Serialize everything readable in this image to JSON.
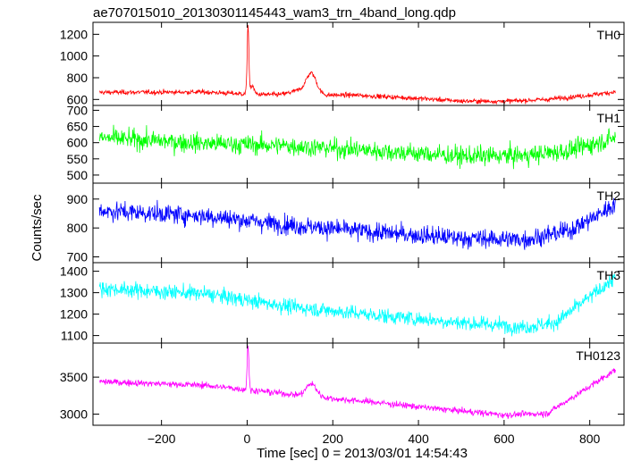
{
  "page_title": "ae707015010_20130301145443_wam3_trn_4band_long.qdp",
  "x_axis": {
    "label": "Time [sec] 0 = 2013/03/01 14:54:43",
    "range": [
      -360,
      880
    ],
    "ticks": [
      -200,
      0,
      200,
      400,
      600,
      800
    ],
    "tick_labels": [
      "−200",
      "0",
      "200",
      "400",
      "600",
      "800"
    ]
  },
  "y_axis_label": "Counts/sec",
  "chart_data": [
    {
      "type": "line",
      "name": "TH0",
      "color": "#ff0000",
      "ylim": [
        545,
        1310
      ],
      "yticks": [
        600,
        800,
        1000,
        1200
      ],
      "noise": 28,
      "baseline": [
        [
          -345,
          665
        ],
        [
          -100,
          668
        ],
        [
          0,
          650
        ],
        [
          100,
          640
        ],
        [
          250,
          640
        ],
        [
          400,
          610
        ],
        [
          500,
          585
        ],
        [
          600,
          583
        ],
        [
          700,
          600
        ],
        [
          800,
          640
        ],
        [
          860,
          670
        ]
      ],
      "features": [
        {
          "center": 2,
          "width": 2,
          "amplitude": 640
        },
        {
          "center": 12,
          "width": 4,
          "amplitude": 80
        },
        {
          "center": 150,
          "width": 12,
          "amplitude": 190
        },
        {
          "center": 120,
          "width": 20,
          "amplitude": 40
        }
      ]
    },
    {
      "type": "line",
      "name": "TH1",
      "color": "#00ff00",
      "ylim": [
        475,
        715
      ],
      "yticks": [
        500,
        550,
        600,
        650,
        700
      ],
      "noise": 38,
      "baseline": [
        [
          -345,
          615
        ],
        [
          -100,
          598
        ],
        [
          100,
          590
        ],
        [
          300,
          575
        ],
        [
          500,
          558
        ],
        [
          650,
          560
        ],
        [
          750,
          575
        ],
        [
          860,
          615
        ]
      ],
      "features": []
    },
    {
      "type": "line",
      "name": "TH2",
      "color": "#0000ff",
      "ylim": [
        680,
        955
      ],
      "yticks": [
        700,
        800,
        900
      ],
      "noise": 42,
      "baseline": [
        [
          -345,
          860
        ],
        [
          -100,
          842
        ],
        [
          100,
          810
        ],
        [
          300,
          785
        ],
        [
          500,
          765
        ],
        [
          650,
          760
        ],
        [
          750,
          790
        ],
        [
          820,
          845
        ],
        [
          860,
          885
        ]
      ],
      "features": []
    },
    {
      "type": "line",
      "name": "TH3",
      "color": "#00ffff",
      "ylim": [
        1065,
        1440
      ],
      "yticks": [
        1100,
        1200,
        1300,
        1400
      ],
      "noise": 45,
      "baseline": [
        [
          -345,
          1320
        ],
        [
          -100,
          1295
        ],
        [
          100,
          1235
        ],
        [
          300,
          1195
        ],
        [
          500,
          1160
        ],
        [
          650,
          1140
        ],
        [
          720,
          1160
        ],
        [
          780,
          1250
        ],
        [
          860,
          1370
        ]
      ],
      "features": []
    },
    {
      "type": "line",
      "name": "TH0123",
      "color": "#ff00ff",
      "ylim": [
        2850,
        3960
      ],
      "yticks": [
        3000,
        3500
      ],
      "noise": 55,
      "baseline": [
        [
          -345,
          3440
        ],
        [
          -100,
          3390
        ],
        [
          0,
          3330
        ],
        [
          100,
          3270
        ],
        [
          200,
          3210
        ],
        [
          300,
          3160
        ],
        [
          450,
          3070
        ],
        [
          600,
          2990
        ],
        [
          700,
          3010
        ],
        [
          780,
          3300
        ],
        [
          860,
          3600
        ]
      ],
      "features": [
        {
          "center": 2,
          "width": 2,
          "amplitude": 620
        },
        {
          "center": 150,
          "width": 12,
          "amplitude": 170
        }
      ]
    }
  ]
}
